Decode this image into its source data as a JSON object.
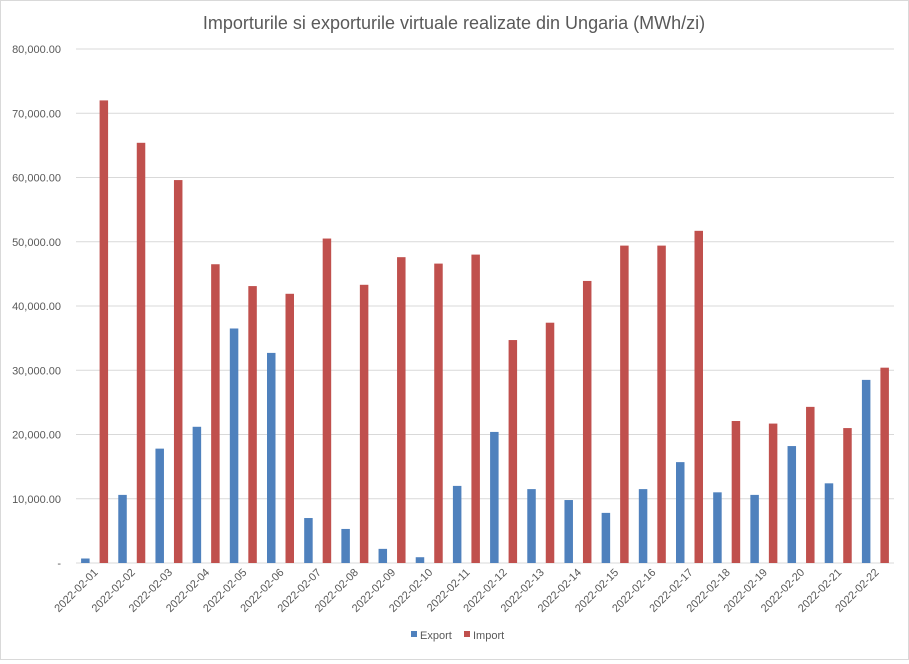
{
  "chart_data": {
    "type": "bar",
    "title": "Importurile si exporturile virtuale realizate din Ungaria (MWh/zi)",
    "xlabel": "",
    "ylabel": "",
    "ylim": [
      0,
      80000
    ],
    "yticks": [
      {
        "value": 0,
        "label": "-"
      },
      {
        "value": 10000,
        "label": "10,000.00"
      },
      {
        "value": 20000,
        "label": "20,000.00"
      },
      {
        "value": 30000,
        "label": "30,000.00"
      },
      {
        "value": 40000,
        "label": "40,000.00"
      },
      {
        "value": 50000,
        "label": "50,000.00"
      },
      {
        "value": 60000,
        "label": "60,000.00"
      },
      {
        "value": 70000,
        "label": "70,000.00"
      },
      {
        "value": 80000,
        "label": "80,000.00"
      }
    ],
    "grid": true,
    "legend_position": "bottom",
    "categories": [
      "2022-02-01",
      "2022-02-02",
      "2022-02-03",
      "2022-02-04",
      "2022-02-05",
      "2022-02-06",
      "2022-02-07",
      "2022-02-08",
      "2022-02-09",
      "2022-02-10",
      "2022-02-11",
      "2022-02-12",
      "2022-02-13",
      "2022-02-14",
      "2022-02-15",
      "2022-02-16",
      "2022-02-17",
      "2022-02-18",
      "2022-02-19",
      "2022-02-20",
      "2022-02-21",
      "2022-02-22"
    ],
    "series": [
      {
        "name": "Export",
        "color": "#4f81bd",
        "values": [
          700,
          10600,
          17800,
          21200,
          36500,
          32700,
          7000,
          5300,
          2200,
          900,
          12000,
          20400,
          11500,
          9800,
          7800,
          11500,
          15700,
          11000,
          10600,
          18200,
          12400,
          28500
        ]
      },
      {
        "name": "Import",
        "color": "#c0504d",
        "values": [
          72000,
          65400,
          59600,
          46500,
          43100,
          41900,
          50500,
          43300,
          47600,
          46600,
          48000,
          34700,
          37400,
          43900,
          49400,
          49400,
          51700,
          22100,
          21700,
          24300,
          21000,
          30400
        ]
      }
    ]
  }
}
